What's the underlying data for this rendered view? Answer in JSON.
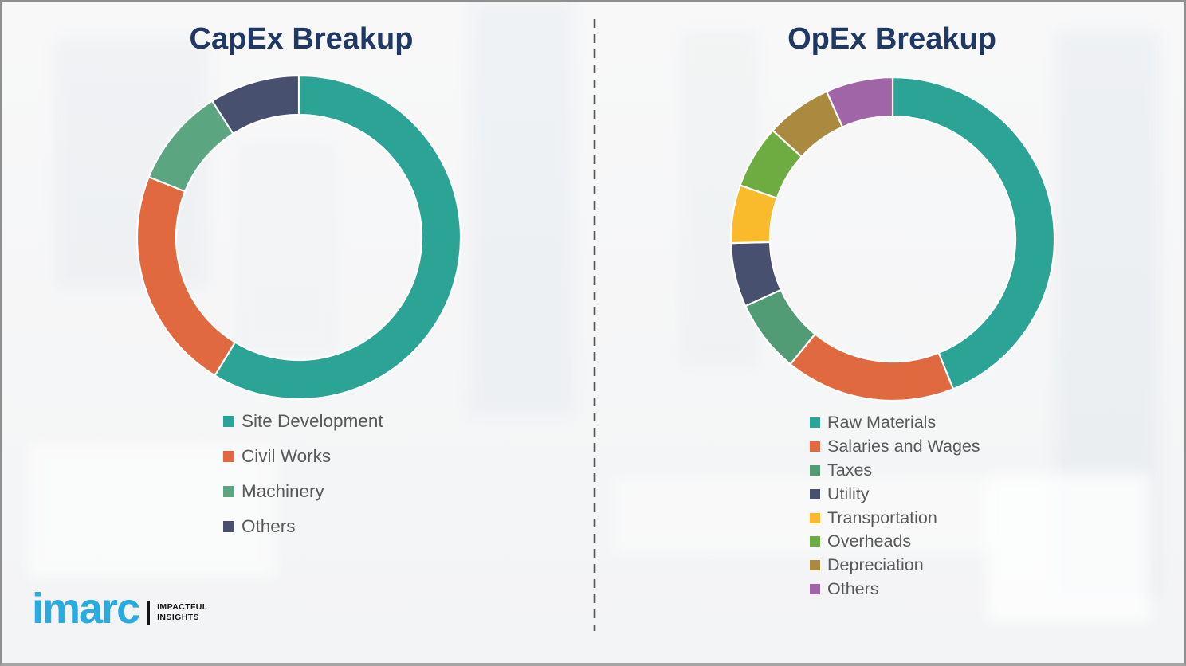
{
  "page": {
    "background_color": "#F5F6F7",
    "border_color": "#9B9B9B",
    "divider_color": "#575757",
    "divider_style": "dashed-vertical"
  },
  "branding": {
    "logo_text": "imarc",
    "tagline_line1": "IMPACTFUL",
    "tagline_line2": "INSIGHTS",
    "logo_color": "#29ABE2"
  },
  "style": {
    "title_color": "#203864",
    "legend_text_color": "#595959",
    "segment_border_color": "#FFFFFF"
  },
  "chart_data": [
    {
      "type": "pie",
      "subtype": "donut",
      "title": "CapEx Breakup",
      "categories": [
        "Site Development",
        "Civil Works",
        "Machinery",
        "Others"
      ],
      "values": [
        58.7,
        22.4,
        9.9,
        9.0
      ],
      "unit": "percent-estimated-from-arc-angles",
      "colors": [
        "#2BA496",
        "#E0693F",
        "#5BA580",
        "#485070"
      ],
      "start_angle_deg": 0,
      "direction": "clockwise",
      "inner_radius_ratio": 0.76,
      "legend_position": "below-left",
      "data_labels_shown": false
    },
    {
      "type": "pie",
      "subtype": "donut",
      "title": "OpEx Breakup",
      "categories": [
        "Raw Materials",
        "Salaries and Wages",
        "Taxes",
        "Utility",
        "Transportation",
        "Overheads",
        "Depreciation",
        "Others"
      ],
      "values": [
        43.9,
        17.0,
        7.3,
        6.4,
        5.8,
        6.3,
        6.6,
        6.7
      ],
      "unit": "percent-estimated-from-arc-angles",
      "colors": [
        "#2BA496",
        "#E0693F",
        "#529C75",
        "#485070",
        "#F9BA2C",
        "#6DAC40",
        "#A98A3E",
        "#A065A6"
      ],
      "start_angle_deg": 0,
      "direction": "clockwise",
      "inner_radius_ratio": 0.76,
      "legend_position": "below-left",
      "data_labels_shown": false
    }
  ]
}
